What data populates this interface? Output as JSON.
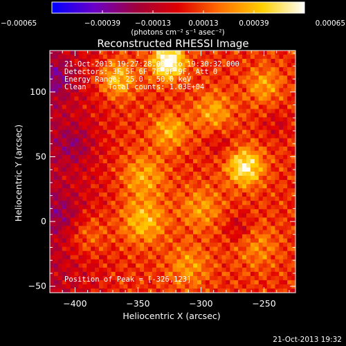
{
  "chart_data": {
    "type": "heatmap",
    "title": "Reconstructed RHESSI Image",
    "xlabel": "Heliocentric X (arcsec)",
    "ylabel": "Heliocentric Y (arcsec)",
    "xlim": [
      -420,
      -225
    ],
    "ylim": [
      -55,
      132
    ],
    "x_ticks": [
      -400,
      -350,
      -300,
      -250
    ],
    "y_ticks": [
      -50,
      0,
      50,
      100
    ],
    "x_tick_labels": [
      "−400",
      "−350",
      "−300",
      "−250"
    ],
    "y_tick_labels": [
      "−50",
      "0",
      "50",
      "100"
    ],
    "colorbar": {
      "min": -0.00065,
      "max": 0.00065,
      "ticks": [
        -0.00065,
        -0.00039,
        -0.00013,
        0.00013,
        0.00039,
        0.00065
      ],
      "tick_labels": [
        "−0.00065",
        "−0.00039",
        "−0.00013",
        "0.00013",
        "0.00039",
        "0.00065"
      ],
      "unit_label": "(photons cm⁻² s⁻¹ asec⁻²)",
      "colors": [
        "#0000ff",
        "#6a00c8",
        "#a0003c",
        "#e00000",
        "#ff7000",
        "#ffd000",
        "#ffffff"
      ]
    },
    "annotations": {
      "time_range": "21-Oct-2013 19:27:28.000 to 19:30:32.000",
      "detectors": "Detectors: 3F 5F 6F 7F 8F 9F, Att 0",
      "energy": "Energy Range: 25.0 - 50.0 keV",
      "method": "Clean     Total counts: 1.03E+04",
      "peak": "Position of Peak = [-326,123]"
    },
    "peak": {
      "x": -326,
      "y": 123
    },
    "sources": [
      {
        "x": -326,
        "y": 123,
        "sigma": 9,
        "amp": 0.00065
      },
      {
        "x": -265,
        "y": 42,
        "sigma": 10,
        "amp": 0.0005
      },
      {
        "x": -367,
        "y": 110,
        "sigma": 10,
        "amp": 0.00035
      },
      {
        "x": -345,
        "y": 0,
        "sigma": 12,
        "amp": 0.00032
      },
      {
        "x": -325,
        "y": 70,
        "sigma": 10,
        "amp": 0.00028
      },
      {
        "x": -345,
        "y": 35,
        "sigma": 12,
        "amp": 0.00026
      },
      {
        "x": -290,
        "y": 85,
        "sigma": 11,
        "amp": 0.00025
      },
      {
        "x": -250,
        "y": 105,
        "sigma": 10,
        "amp": 0.00024
      },
      {
        "x": -300,
        "y": 10,
        "sigma": 12,
        "amp": 0.00022
      },
      {
        "x": -390,
        "y": -10,
        "sigma": 12,
        "amp": 0.0002
      },
      {
        "x": -310,
        "y": -35,
        "sigma": 12,
        "amp": 0.00022
      },
      {
        "x": -255,
        "y": -20,
        "sigma": 12,
        "amp": 0.00018
      },
      {
        "x": -400,
        "y": 60,
        "sigma": 10,
        "amp": -0.00018
      },
      {
        "x": -415,
        "y": 110,
        "sigma": 10,
        "amp": -0.0002
      },
      {
        "x": -410,
        "y": 5,
        "sigma": 11,
        "amp": -0.00016
      },
      {
        "x": -270,
        "y": -5,
        "sigma": 8,
        "amp": -0.00016
      },
      {
        "x": -285,
        "y": 60,
        "sigma": 8,
        "amp": -0.00012
      },
      {
        "x": -240,
        "y": 75,
        "sigma": 8,
        "amp": -0.00012
      }
    ]
  },
  "timestamp": "21-Oct-2013 19:32"
}
